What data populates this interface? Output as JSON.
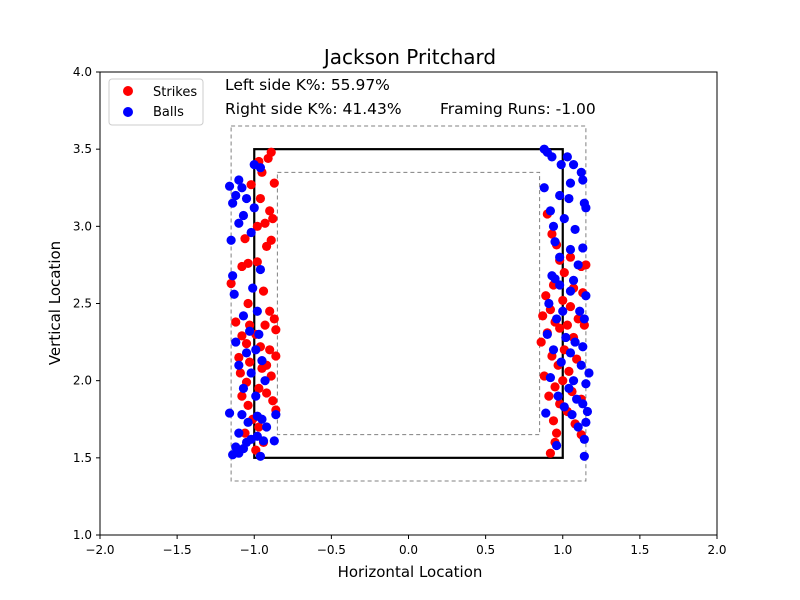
{
  "chart_data": {
    "type": "scatter",
    "title": "Jackson Pritchard",
    "xlabel": "Horizontal Location",
    "ylabel": "Vertical Location",
    "xlim": [
      -2.0,
      2.0
    ],
    "ylim": [
      1.0,
      4.0
    ],
    "x_ticks": [
      "−2.0",
      "−1.5",
      "−1.0",
      "−0.5",
      "0.0",
      "0.5",
      "1.0",
      "1.5",
      "2.0"
    ],
    "y_ticks": [
      "1.0",
      "1.5",
      "2.0",
      "2.5",
      "3.0",
      "3.5",
      "4.0"
    ],
    "legend_position": "top-left",
    "annotations": {
      "left_k": "Left side K%: 55.97%",
      "right_k": "Right side K%: 41.43%",
      "framing": "Framing Runs: -1.00"
    },
    "strike_zone": {
      "x": [
        -1.0,
        1.0
      ],
      "y": [
        1.5,
        3.5
      ],
      "color": "#000000"
    },
    "outer_zone": {
      "x": [
        -1.15,
        1.15
      ],
      "y": [
        1.35,
        3.65
      ],
      "color": "#808080",
      "style": "dashed"
    },
    "inner_zone": {
      "x": [
        -0.85,
        0.85
      ],
      "y": [
        1.65,
        3.35
      ],
      "color": "#808080",
      "style": "dashed"
    },
    "series": [
      {
        "name": "Strikes",
        "color": "#ff0000",
        "points": [
          [
            -0.97,
            3.42
          ],
          [
            -0.89,
            3.48
          ],
          [
            -0.91,
            3.44
          ],
          [
            -0.95,
            3.35
          ],
          [
            -0.87,
            3.28
          ],
          [
            -1.02,
            3.27
          ],
          [
            -0.96,
            3.18
          ],
          [
            -0.9,
            3.1
          ],
          [
            -0.98,
            3.0
          ],
          [
            -0.93,
            3.02
          ],
          [
            -0.88,
            3.05
          ],
          [
            -1.06,
            2.92
          ],
          [
            -0.92,
            2.87
          ],
          [
            -0.89,
            2.91
          ],
          [
            -1.08,
            2.74
          ],
          [
            -1.04,
            2.76
          ],
          [
            -0.98,
            2.77
          ],
          [
            -1.15,
            2.63
          ],
          [
            -0.94,
            2.58
          ],
          [
            -1.04,
            2.5
          ],
          [
            -0.9,
            2.45
          ],
          [
            -0.87,
            2.4
          ],
          [
            -1.03,
            2.36
          ],
          [
            -1.12,
            2.38
          ],
          [
            -0.93,
            2.36
          ],
          [
            -0.86,
            2.33
          ],
          [
            -0.99,
            2.3
          ],
          [
            -1.08,
            2.29
          ],
          [
            -1.05,
            2.24
          ],
          [
            -0.96,
            2.22
          ],
          [
            -0.9,
            2.2
          ],
          [
            -0.86,
            2.16
          ],
          [
            -1.1,
            2.15
          ],
          [
            -1.03,
            2.12
          ],
          [
            -0.92,
            2.1
          ],
          [
            -0.95,
            2.08
          ],
          [
            -0.89,
            2.03
          ],
          [
            -1.09,
            2.05
          ],
          [
            -1.05,
            1.99
          ],
          [
            -0.97,
            1.95
          ],
          [
            -0.92,
            1.92
          ],
          [
            -1.08,
            1.9
          ],
          [
            -0.88,
            1.87
          ],
          [
            -1.04,
            1.84
          ],
          [
            -0.86,
            1.81
          ],
          [
            -1.01,
            1.75
          ],
          [
            -0.97,
            1.7
          ],
          [
            -1.06,
            1.66
          ],
          [
            -0.94,
            1.6
          ],
          [
            -0.99,
            1.55
          ],
          [
            0.9,
            3.08
          ],
          [
            0.93,
            2.95
          ],
          [
            0.96,
            2.88
          ],
          [
            1.05,
            2.8
          ],
          [
            0.98,
            2.78
          ],
          [
            1.12,
            2.74
          ],
          [
            1.15,
            2.75
          ],
          [
            1.01,
            2.7
          ],
          [
            0.94,
            2.62
          ],
          [
            1.07,
            2.6
          ],
          [
            1.13,
            2.57
          ],
          [
            0.89,
            2.55
          ],
          [
            1.0,
            2.52
          ],
          [
            1.05,
            2.48
          ],
          [
            0.92,
            2.46
          ],
          [
            0.87,
            2.42
          ],
          [
            1.1,
            2.4
          ],
          [
            0.95,
            2.38
          ],
          [
            1.03,
            2.36
          ],
          [
            1.14,
            2.36
          ],
          [
            0.98,
            2.34
          ],
          [
            0.9,
            2.31
          ],
          [
            1.07,
            2.28
          ],
          [
            0.86,
            2.25
          ],
          [
            1.01,
            2.2
          ],
          [
            0.93,
            2.16
          ],
          [
            1.09,
            2.14
          ],
          [
            0.97,
            2.1
          ],
          [
            1.04,
            2.06
          ],
          [
            0.88,
            2.03
          ],
          [
            1.0,
            2.0
          ],
          [
            0.95,
            1.96
          ],
          [
            1.06,
            1.93
          ],
          [
            0.91,
            1.9
          ],
          [
            1.12,
            1.88
          ],
          [
            0.98,
            1.85
          ],
          [
            1.03,
            1.8
          ],
          [
            0.94,
            1.74
          ],
          [
            1.08,
            1.72
          ],
          [
            0.96,
            1.66
          ],
          [
            1.12,
            1.65
          ],
          [
            0.95,
            1.6
          ],
          [
            0.92,
            1.53
          ]
        ]
      },
      {
        "name": "Balls",
        "color": "#0000ff",
        "points": [
          [
            -1.0,
            3.4
          ],
          [
            -0.96,
            3.38
          ],
          [
            -1.1,
            3.3
          ],
          [
            -1.16,
            3.26
          ],
          [
            -1.08,
            3.25
          ],
          [
            -1.12,
            3.2
          ],
          [
            -1.05,
            3.18
          ],
          [
            -1.14,
            3.15
          ],
          [
            -1.0,
            3.12
          ],
          [
            -1.07,
            3.07
          ],
          [
            -1.1,
            3.02
          ],
          [
            -1.02,
            2.96
          ],
          [
            -1.15,
            2.91
          ],
          [
            -0.96,
            2.72
          ],
          [
            -1.14,
            2.68
          ],
          [
            -1.01,
            2.6
          ],
          [
            -1.13,
            2.56
          ],
          [
            -0.98,
            2.45
          ],
          [
            -1.07,
            2.42
          ],
          [
            -1.03,
            2.32
          ],
          [
            -0.97,
            2.3
          ],
          [
            -1.12,
            2.25
          ],
          [
            -0.99,
            2.2
          ],
          [
            -1.05,
            2.18
          ],
          [
            -0.95,
            2.13
          ],
          [
            -1.1,
            2.1
          ],
          [
            -1.02,
            2.05
          ],
          [
            -0.93,
            2.0
          ],
          [
            -1.07,
            1.95
          ],
          [
            -0.99,
            1.9
          ],
          [
            -0.86,
            1.78
          ],
          [
            -1.16,
            1.79
          ],
          [
            -1.08,
            1.78
          ],
          [
            -0.98,
            1.77
          ],
          [
            -0.95,
            1.75
          ],
          [
            -1.04,
            1.73
          ],
          [
            -0.92,
            1.7
          ],
          [
            -1.1,
            1.66
          ],
          [
            -0.98,
            1.64
          ],
          [
            -1.02,
            1.62
          ],
          [
            -0.87,
            1.61
          ],
          [
            -0.94,
            1.61
          ],
          [
            -1.05,
            1.6
          ],
          [
            -1.12,
            1.57
          ],
          [
            -1.07,
            1.56
          ],
          [
            -1.1,
            1.53
          ],
          [
            -1.14,
            1.52
          ],
          [
            -0.96,
            1.51
          ],
          [
            0.88,
            3.5
          ],
          [
            0.9,
            3.48
          ],
          [
            0.93,
            3.45
          ],
          [
            0.99,
            3.4
          ],
          [
            1.03,
            3.45
          ],
          [
            1.07,
            3.4
          ],
          [
            1.12,
            3.35
          ],
          [
            1.13,
            3.3
          ],
          [
            1.05,
            3.28
          ],
          [
            0.98,
            3.2
          ],
          [
            0.88,
            3.25
          ],
          [
            1.04,
            3.18
          ],
          [
            1.14,
            3.15
          ],
          [
            0.92,
            3.1
          ],
          [
            1.01,
            3.05
          ],
          [
            1.15,
            3.12
          ],
          [
            0.94,
            3.0
          ],
          [
            1.08,
            2.98
          ],
          [
            0.95,
            2.9
          ],
          [
            1.05,
            2.85
          ],
          [
            1.13,
            2.86
          ],
          [
            0.98,
            2.8
          ],
          [
            1.1,
            2.75
          ],
          [
            0.93,
            2.68
          ],
          [
            0.95,
            2.66
          ],
          [
            1.07,
            2.65
          ],
          [
            0.98,
            2.62
          ],
          [
            1.05,
            2.58
          ],
          [
            1.15,
            2.55
          ],
          [
            0.91,
            2.5
          ],
          [
            1.0,
            2.45
          ],
          [
            1.11,
            2.45
          ],
          [
            0.96,
            2.4
          ],
          [
            1.14,
            2.4
          ],
          [
            0.9,
            2.3
          ],
          [
            1.02,
            2.28
          ],
          [
            1.08,
            2.25
          ],
          [
            1.13,
            2.22
          ],
          [
            0.94,
            2.2
          ],
          [
            1.05,
            2.18
          ],
          [
            0.99,
            2.12
          ],
          [
            1.12,
            2.1
          ],
          [
            1.17,
            2.05
          ],
          [
            0.92,
            2.02
          ],
          [
            1.07,
            2.0
          ],
          [
            1.15,
            1.98
          ],
          [
            1.04,
            1.95
          ],
          [
            0.97,
            1.9
          ],
          [
            1.09,
            1.88
          ],
          [
            1.13,
            1.85
          ],
          [
            1.01,
            1.83
          ],
          [
            1.16,
            1.8
          ],
          [
            0.89,
            1.79
          ],
          [
            1.06,
            1.78
          ],
          [
            1.15,
            1.73
          ],
          [
            1.1,
            1.7
          ],
          [
            1.14,
            1.62
          ],
          [
            0.96,
            1.58
          ],
          [
            1.14,
            1.51
          ]
        ]
      }
    ]
  }
}
